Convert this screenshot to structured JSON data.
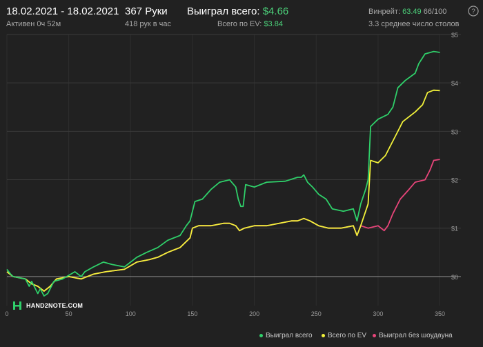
{
  "header": {
    "date_range": "18.02.2021 - 18.02.2021",
    "active": "Активен 0ч 52м",
    "hands": "367 Руки",
    "hands_per_hour": "418 рук в час",
    "won_total_label": "Выиграл всего:",
    "won_total_value": "$4.66",
    "ev_total_label": "Всего по EV:",
    "ev_total_value": "$3.84",
    "winrate_label": "Винрейт:",
    "winrate_value": "63.49",
    "winrate_hands": "66/100",
    "avg_tables": "3.3 среднее число столов"
  },
  "logo": {
    "text": "HAND2NOTE.COM",
    "icon": "h2n-logo-icon"
  },
  "colors": {
    "background": "#212121",
    "grid": "#3a3a3a",
    "won_total": "#2fd06a",
    "ev_total": "#f2f23a",
    "no_showdown": "#e8457a"
  },
  "chart_data": {
    "type": "line",
    "x_ticks": [
      "0",
      "50",
      "100",
      "150",
      "200",
      "250",
      "300",
      "350"
    ],
    "y_ticks": [
      "$0",
      "$1",
      "$2",
      "$3",
      "$4",
      "$5"
    ],
    "xlim": [
      0,
      367
    ],
    "ylim": [
      -0.4,
      5.0
    ],
    "grid": "horizontal",
    "legend_position": "bottom-right",
    "series": [
      {
        "name": "Выиграл всего",
        "color": "#2fd06a",
        "points": [
          [
            0,
            0.15
          ],
          [
            3,
            0.05
          ],
          [
            5,
            0.0
          ],
          [
            15,
            -0.05
          ],
          [
            18,
            -0.2
          ],
          [
            20,
            -0.1
          ],
          [
            25,
            -0.35
          ],
          [
            27,
            -0.25
          ],
          [
            30,
            -0.4
          ],
          [
            33,
            -0.35
          ],
          [
            38,
            -0.1
          ],
          [
            45,
            -0.05
          ],
          [
            55,
            0.1
          ],
          [
            60,
            0.0
          ],
          [
            63,
            0.1
          ],
          [
            70,
            0.2
          ],
          [
            78,
            0.3
          ],
          [
            85,
            0.25
          ],
          [
            95,
            0.2
          ],
          [
            105,
            0.4
          ],
          [
            113,
            0.5
          ],
          [
            122,
            0.6
          ],
          [
            130,
            0.75
          ],
          [
            140,
            0.85
          ],
          [
            145,
            1.05
          ],
          [
            148,
            1.15
          ],
          [
            152,
            1.55
          ],
          [
            158,
            1.6
          ],
          [
            165,
            1.8
          ],
          [
            172,
            1.95
          ],
          [
            180,
            2.0
          ],
          [
            185,
            1.85
          ],
          [
            187,
            1.6
          ],
          [
            189,
            1.45
          ],
          [
            191,
            1.45
          ],
          [
            193,
            1.9
          ],
          [
            200,
            1.85
          ],
          [
            210,
            1.95
          ],
          [
            225,
            1.97
          ],
          [
            235,
            2.05
          ],
          [
            238,
            2.05
          ],
          [
            240,
            2.1
          ],
          [
            243,
            1.95
          ],
          [
            247,
            1.85
          ],
          [
            252,
            1.7
          ],
          [
            258,
            1.6
          ],
          [
            263,
            1.4
          ],
          [
            272,
            1.35
          ],
          [
            280,
            1.4
          ],
          [
            283,
            1.15
          ],
          [
            286,
            1.5
          ],
          [
            290,
            1.8
          ],
          [
            292,
            2.0
          ],
          [
            294,
            3.1
          ],
          [
            300,
            3.25
          ],
          [
            308,
            3.35
          ],
          [
            312,
            3.5
          ],
          [
            316,
            3.9
          ],
          [
            322,
            4.05
          ],
          [
            330,
            4.2
          ],
          [
            333,
            4.4
          ],
          [
            338,
            4.6
          ],
          [
            345,
            4.65
          ],
          [
            350,
            4.63
          ]
        ]
      },
      {
        "name": "Всего по EV",
        "color": "#f2f23a",
        "points": [
          [
            0,
            0.1
          ],
          [
            5,
            0.0
          ],
          [
            15,
            -0.05
          ],
          [
            20,
            -0.15
          ],
          [
            25,
            -0.2
          ],
          [
            30,
            -0.3
          ],
          [
            35,
            -0.2
          ],
          [
            40,
            -0.05
          ],
          [
            50,
            0.0
          ],
          [
            60,
            -0.05
          ],
          [
            70,
            0.05
          ],
          [
            80,
            0.1
          ],
          [
            95,
            0.15
          ],
          [
            105,
            0.3
          ],
          [
            115,
            0.35
          ],
          [
            122,
            0.4
          ],
          [
            130,
            0.5
          ],
          [
            140,
            0.6
          ],
          [
            148,
            0.8
          ],
          [
            150,
            1.0
          ],
          [
            155,
            1.05
          ],
          [
            165,
            1.05
          ],
          [
            175,
            1.1
          ],
          [
            180,
            1.1
          ],
          [
            185,
            1.05
          ],
          [
            188,
            0.95
          ],
          [
            192,
            1.0
          ],
          [
            200,
            1.05
          ],
          [
            210,
            1.05
          ],
          [
            220,
            1.1
          ],
          [
            230,
            1.15
          ],
          [
            235,
            1.15
          ],
          [
            240,
            1.2
          ],
          [
            245,
            1.15
          ],
          [
            252,
            1.05
          ],
          [
            260,
            1.0
          ],
          [
            270,
            1.0
          ],
          [
            280,
            1.05
          ],
          [
            283,
            0.85
          ],
          [
            286,
            1.05
          ],
          [
            292,
            1.5
          ],
          [
            294,
            2.4
          ],
          [
            300,
            2.35
          ],
          [
            306,
            2.5
          ],
          [
            310,
            2.7
          ],
          [
            316,
            3.0
          ],
          [
            320,
            3.2
          ],
          [
            330,
            3.4
          ],
          [
            336,
            3.55
          ],
          [
            340,
            3.8
          ],
          [
            345,
            3.85
          ],
          [
            350,
            3.84
          ]
        ]
      },
      {
        "name": "Выиграл без шоудауна",
        "color": "#e8457a",
        "points": [
          [
            0,
            0.1
          ],
          [
            5,
            0.0
          ],
          [
            15,
            -0.05
          ],
          [
            20,
            -0.15
          ],
          [
            25,
            -0.2
          ],
          [
            30,
            -0.3
          ],
          [
            35,
            -0.2
          ],
          [
            40,
            -0.05
          ],
          [
            50,
            0.0
          ],
          [
            60,
            -0.05
          ],
          [
            70,
            0.05
          ],
          [
            80,
            0.1
          ],
          [
            95,
            0.15
          ],
          [
            105,
            0.3
          ],
          [
            115,
            0.35
          ],
          [
            122,
            0.4
          ],
          [
            130,
            0.5
          ],
          [
            140,
            0.6
          ],
          [
            148,
            0.8
          ],
          [
            150,
            1.0
          ],
          [
            155,
            1.05
          ],
          [
            165,
            1.05
          ],
          [
            175,
            1.1
          ],
          [
            180,
            1.1
          ],
          [
            185,
            1.05
          ],
          [
            188,
            0.95
          ],
          [
            192,
            1.0
          ],
          [
            200,
            1.05
          ],
          [
            210,
            1.05
          ],
          [
            220,
            1.1
          ],
          [
            230,
            1.15
          ],
          [
            235,
            1.15
          ],
          [
            240,
            1.2
          ],
          [
            245,
            1.15
          ],
          [
            252,
            1.05
          ],
          [
            260,
            1.0
          ],
          [
            270,
            1.0
          ],
          [
            280,
            1.05
          ],
          [
            283,
            0.85
          ],
          [
            286,
            1.05
          ],
          [
            292,
            1.0
          ],
          [
            300,
            1.05
          ],
          [
            305,
            0.95
          ],
          [
            308,
            1.05
          ],
          [
            312,
            1.3
          ],
          [
            318,
            1.6
          ],
          [
            325,
            1.8
          ],
          [
            330,
            1.95
          ],
          [
            338,
            2.0
          ],
          [
            342,
            2.2
          ],
          [
            345,
            2.4
          ],
          [
            350,
            2.42
          ]
        ]
      }
    ]
  }
}
